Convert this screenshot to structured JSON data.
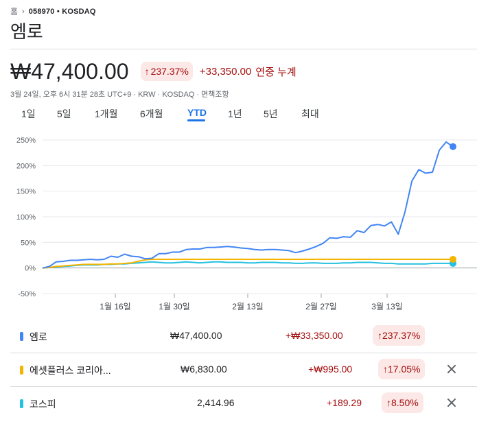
{
  "breadcrumb": {
    "home": "홈",
    "ticker": "058970 • KOSDAQ"
  },
  "title": "엠로",
  "quote": {
    "price": "₩47,400.00",
    "pct": "237.37%",
    "change": "+33,350.00",
    "change_label": "연중 누계",
    "meta": "3월 24일, 오후 6시 31분 28초 UTC+9 · KRW · KOSDAQ · 면책조항"
  },
  "tabs": [
    {
      "label": "1일"
    },
    {
      "label": "5일"
    },
    {
      "label": "1개월"
    },
    {
      "label": "6개월"
    },
    {
      "label": "YTD"
    },
    {
      "label": "1년"
    },
    {
      "label": "5년"
    },
    {
      "label": "최대"
    }
  ],
  "active_tab": "YTD",
  "colors": {
    "emro": "#4285f4",
    "espl": "#f4b400",
    "kospi": "#24c1e0",
    "up": "#a50e0e",
    "badge_bg": "#fce8e6"
  },
  "chart_data": {
    "type": "line",
    "y_ticks": [
      "250%",
      "200%",
      "150%",
      "100%",
      "50%",
      "0%",
      "-50%"
    ],
    "ylim": [
      -50,
      250
    ],
    "x_ticks": [
      "1월 16일",
      "1월 30일",
      "2월 13일",
      "2월 27일",
      "3월 13일"
    ],
    "series": [
      {
        "name": "엠로",
        "color": "#4285f4",
        "values": [
          0,
          3,
          12,
          13,
          15,
          15,
          16,
          17,
          16,
          17,
          23,
          21,
          27,
          23,
          22,
          18,
          19,
          28,
          28,
          31,
          31,
          36,
          37,
          37,
          40,
          40,
          41,
          42,
          41,
          39,
          38,
          36,
          35,
          36,
          36,
          35,
          34,
          30,
          33,
          37,
          42,
          48,
          59,
          58,
          61,
          60,
          73,
          69,
          83,
          85,
          82,
          90,
          66,
          110,
          170,
          192,
          185,
          187,
          230,
          246,
          237
        ]
      },
      {
        "name": "에셋플러스 코리아...",
        "color": "#f4b400",
        "values": [
          0,
          1,
          3,
          4,
          5,
          6,
          7,
          7,
          7,
          7,
          8,
          8,
          9,
          10,
          13,
          16,
          17,
          17,
          17,
          17,
          17,
          17,
          17,
          17,
          17,
          17,
          17,
          17,
          17,
          17,
          17,
          17,
          17,
          17,
          17,
          17,
          17,
          17,
          17,
          17,
          17,
          17,
          17,
          17,
          17,
          17,
          17,
          17,
          17,
          17,
          17,
          17,
          17,
          17,
          17,
          17,
          17,
          17,
          17,
          17,
          17
        ]
      },
      {
        "name": "코스피",
        "color": "#24c1e0",
        "values": [
          0,
          1,
          2,
          3,
          4,
          5,
          6,
          6,
          6,
          7,
          7,
          8,
          8,
          9,
          10,
          11,
          12,
          11,
          10,
          10,
          11,
          12,
          11,
          10,
          11,
          12,
          12,
          11,
          11,
          11,
          10,
          10,
          11,
          11,
          11,
          10,
          10,
          9,
          9,
          10,
          10,
          9,
          9,
          9,
          10,
          10,
          11,
          11,
          11,
          10,
          9,
          9,
          8,
          8,
          8,
          8,
          8,
          9,
          9,
          9,
          9
        ]
      }
    ]
  },
  "rows": [
    {
      "name": "엠로",
      "price": "₩47,400.00",
      "change": "+₩33,350.00",
      "pct": "237.37%",
      "color": "#4285f4"
    },
    {
      "name": "에셋플러스 코리아...",
      "price": "₩6,830.00",
      "change": "+₩995.00",
      "pct": "17.05%",
      "color": "#f4b400"
    },
    {
      "name": "코스피",
      "price": "2,414.96",
      "change": "+189.29",
      "pct": "8.50%",
      "color": "#24c1e0"
    }
  ]
}
